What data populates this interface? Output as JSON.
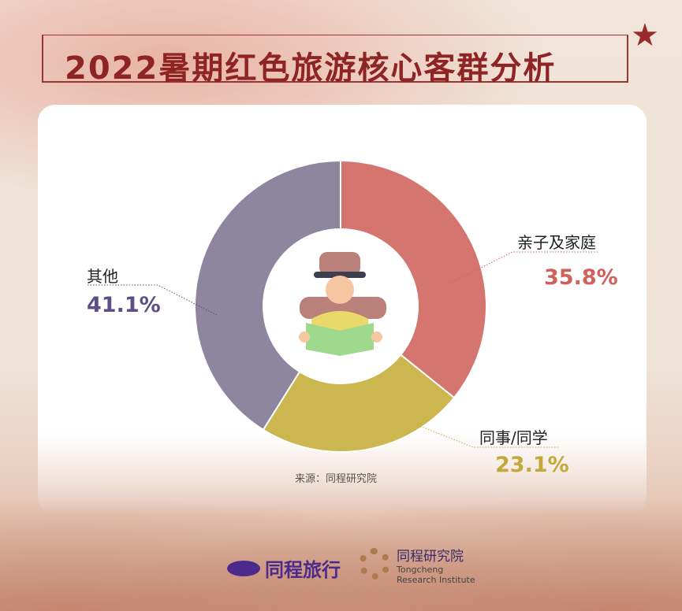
{
  "title": "2022暑期红色旅游核心客群分析",
  "source": "来源：同程研究院",
  "logos": {
    "brand1": "同程旅行",
    "brand2_cn": "同程研究院",
    "brand2_en1": "Tongcheng",
    "brand2_en2": "Research Institute"
  },
  "chart_data": {
    "type": "pie",
    "donut": true,
    "categories": [
      "亲子及家庭",
      "同事/同学",
      "其他"
    ],
    "values": [
      35.8,
      23.1,
      41.1
    ],
    "labels": [
      "35.8%",
      "23.1%",
      "41.1%"
    ],
    "colors": [
      "#d4756f",
      "#cbb64f",
      "#8e859f"
    ],
    "label_colors": [
      "#d0605a",
      "#c2a93a",
      "#5e4f86"
    ],
    "center_icon": "traveler-with-map-icon"
  }
}
